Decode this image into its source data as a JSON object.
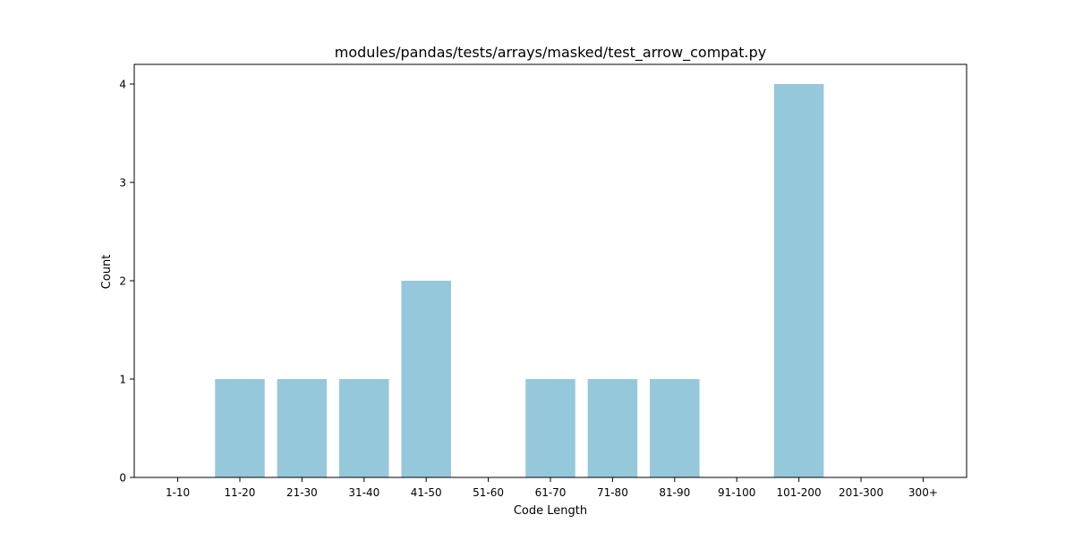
{
  "chart_data": {
    "type": "bar",
    "title": "modules/pandas/tests/arrays/masked/test_arrow_compat.py",
    "xlabel": "Code Length",
    "ylabel": "Count",
    "categories": [
      "1-10",
      "11-20",
      "21-30",
      "31-40",
      "41-50",
      "51-60",
      "61-70",
      "71-80",
      "81-90",
      "91-100",
      "101-200",
      "201-300",
      "300+"
    ],
    "values": [
      0,
      1,
      1,
      1,
      2,
      0,
      1,
      1,
      1,
      0,
      4,
      0,
      0
    ],
    "ylim": [
      0,
      4.2
    ],
    "yticks": [
      0,
      1,
      2,
      3,
      4
    ],
    "grid": false,
    "legend": "none",
    "colors": {
      "bar": "#96c8dc",
      "axis": "#000000",
      "background": "#ffffff"
    }
  }
}
